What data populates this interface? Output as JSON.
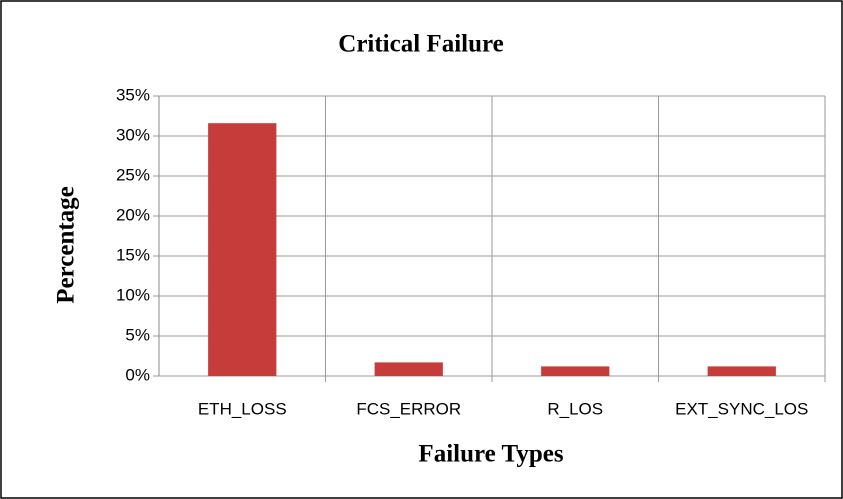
{
  "chart_data": {
    "type": "bar",
    "title": "Critical Failure",
    "x_label": "Failure Types",
    "y_label": "Percentage",
    "categories": [
      "ETH_LOSS",
      "FCS_ERROR",
      "R_LOS",
      "EXT_SYNC_LOS"
    ],
    "values": [
      31.6,
      1.7,
      1.2,
      1.2
    ],
    "color": "#c63c3a",
    "ylim": [
      0,
      35
    ],
    "yticks": [
      {
        "value": 0,
        "label": "0%"
      },
      {
        "value": 5,
        "label": "5%"
      },
      {
        "value": 10,
        "label": "10%"
      },
      {
        "value": 15,
        "label": "15%"
      },
      {
        "value": 20,
        "label": "20%"
      },
      {
        "value": 25,
        "label": "25%"
      },
      {
        "value": 30,
        "label": "30%"
      },
      {
        "value": 35,
        "label": "35%"
      }
    ],
    "grid": true
  }
}
